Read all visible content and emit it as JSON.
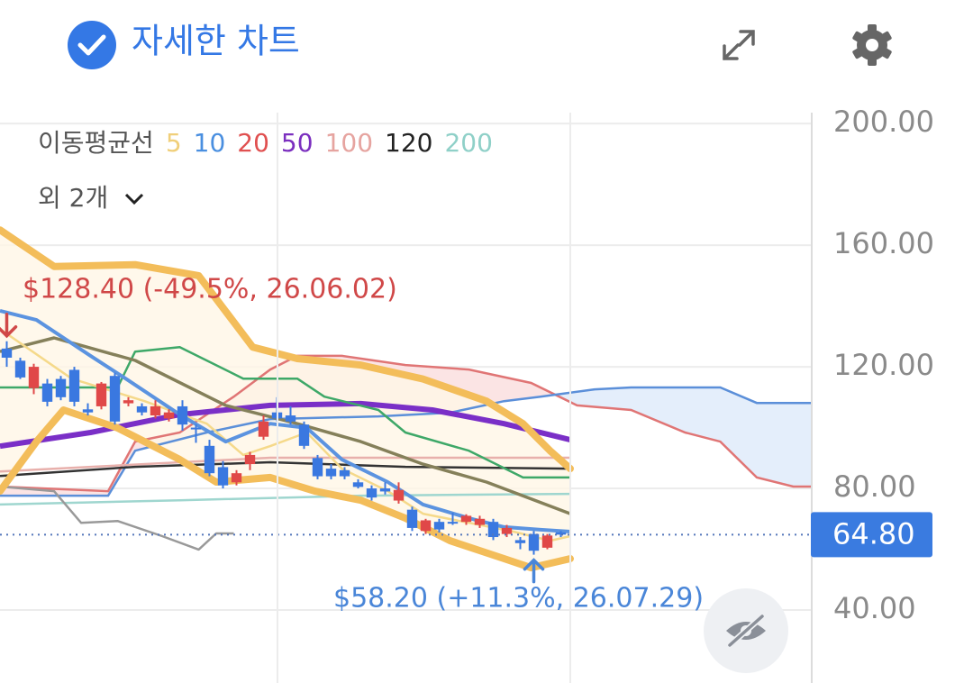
{
  "chart_data": {
    "type": "candlestick",
    "title": "자세한 차트",
    "legend": {
      "title": "이동평균선",
      "more": "외 2개",
      "items": [
        {
          "label": "5",
          "color": "#f0cf7a"
        },
        {
          "label": "10",
          "color": "#4a8fe0"
        },
        {
          "label": "20",
          "color": "#e05050"
        },
        {
          "label": "50",
          "color": "#7b2fbf"
        },
        {
          "label": "100",
          "color": "#e6a4a0"
        },
        {
          "label": "120",
          "color": "#222222"
        },
        {
          "label": "200",
          "color": "#8fd0c8"
        }
      ]
    },
    "ylim": [
      16,
      203.6
    ],
    "xlim": [
      -0.5,
      59.5
    ],
    "yticks": [
      {
        "value": 40,
        "label": "40.00"
      },
      {
        "value": 80,
        "label": "80.00"
      },
      {
        "value": 120,
        "label": "120.00"
      },
      {
        "value": 160,
        "label": "160.00"
      },
      {
        "value": 200,
        "label": "200.00"
      }
    ],
    "grid": true,
    "up_color": "#e04848",
    "down_color": "#3a78e0",
    "ohlc": [
      [
        126,
        128.4,
        120,
        123
      ],
      [
        122,
        123,
        116,
        116.5
      ],
      [
        113,
        121,
        111,
        120
      ],
      [
        114.5,
        116,
        107,
        108.5
      ],
      [
        116,
        117,
        109,
        110
      ],
      [
        119,
        120,
        107,
        108.5
      ],
      [
        106,
        108,
        104,
        105
      ],
      [
        107,
        115,
        106,
        114.5
      ],
      [
        117,
        118,
        101,
        102
      ],
      [
        108,
        110,
        107,
        109
      ],
      [
        107,
        108,
        104,
        105
      ],
      [
        104,
        109,
        103,
        107
      ],
      [
        103,
        106,
        102,
        105
      ],
      [
        107,
        109,
        99,
        101
      ],
      [
        100,
        101,
        95,
        99.5
      ],
      [
        94,
        96,
        84,
        85
      ],
      [
        87,
        89,
        80,
        81
      ],
      [
        82,
        86,
        81,
        85
      ],
      [
        88,
        92,
        86,
        91
      ],
      [
        97,
        104,
        96,
        102
      ],
      [
        105,
        110,
        102,
        103
      ],
      [
        104,
        107,
        101,
        102
      ],
      [
        101,
        102,
        93,
        94
      ],
      [
        90,
        91,
        83,
        84
      ],
      [
        86.5,
        88,
        83,
        84
      ],
      [
        86,
        87,
        83,
        84
      ],
      [
        82,
        83,
        80,
        80.5
      ],
      [
        80,
        81,
        76,
        77
      ],
      [
        80,
        82,
        78,
        79
      ],
      [
        76,
        82,
        75,
        79.5
      ],
      [
        73,
        74,
        66,
        67
      ],
      [
        66,
        70,
        65,
        69.5
      ],
      [
        69,
        70,
        65.5,
        66.5
      ],
      [
        69,
        72,
        68,
        68.5
      ],
      [
        69,
        71.5,
        68,
        71
      ],
      [
        68,
        71,
        67,
        70
      ],
      [
        69,
        70,
        63,
        64
      ],
      [
        65,
        68,
        64,
        67
      ],
      [
        63,
        64,
        60,
        62
      ],
      [
        65,
        66,
        58.2,
        59.5
      ],
      [
        60.5,
        65,
        60,
        64.5
      ],
      [
        65.5,
        66,
        64,
        64.8
      ]
    ],
    "cloud": {
      "fill_up": "#fbe4e4",
      "fill_down": "#e4eefb",
      "span_a": {
        "color": "#e07575",
        "x": [
          -0.5,
          7.5,
          9.5,
          12.8,
          16.8,
          19.5,
          21.5,
          24.8,
          29.5,
          34.2,
          38.8,
          42.2,
          46.2,
          50.2,
          52.8,
          55.5,
          58.2,
          59.5
        ],
        "values": [
          80.6,
          79.1,
          95.4,
          98.4,
          110.2,
          119.1,
          123.6,
          123.6,
          120.6,
          119.1,
          114.7,
          107.3,
          105.8,
          98.4,
          95.4,
          83.6,
          80.6,
          80.6
        ]
      },
      "span_b": {
        "color": "#5b8fd9",
        "x": [
          -0.5,
          7.5,
          9.5,
          14.8,
          19.5,
          27.5,
          32.8,
          36.8,
          39.5,
          43.5,
          46.2,
          52.8,
          55.5,
          59.5
        ],
        "values": [
          77.6,
          77.6,
          92.4,
          98.4,
          102.8,
          103.7,
          104.9,
          108.7,
          110.2,
          112.6,
          113.2,
          113.2,
          108.1,
          108.1
        ]
      }
    },
    "bands": {
      "fill": "#fff6e6",
      "upper": {
        "color": "#f3bd5a",
        "x": [
          -0.5,
          3.5,
          9.5,
          14.2,
          18.2,
          21.5,
          26.2,
          30.8,
          35.5,
          38.2,
          40.2,
          41.7
        ],
        "values": [
          165,
          153,
          153.6,
          150,
          126.5,
          122.7,
          120.6,
          116,
          108.7,
          101.3,
          92.4,
          86.5
        ]
      },
      "lower": {
        "color": "#f3bd5a",
        "x": [
          -0.5,
          2.2,
          4.2,
          8.2,
          12.8,
          15.5,
          19.5,
          22.8,
          26.2,
          29.5,
          32.8,
          36.8,
          38.8,
          41.7
        ],
        "values": [
          79.1,
          95.4,
          105.8,
          99.9,
          89.5,
          82.1,
          83.6,
          79.1,
          76.1,
          70.2,
          62.8,
          56.9,
          53.9,
          56.9
        ]
      }
    },
    "overlays": [
      {
        "color": "#9fd6cf",
        "x": [
          -0.5,
          12.8,
          26.2,
          41.7
        ],
        "values": [
          74.7,
          76.1,
          77.6,
          78.2
        ]
      },
      {
        "color": "#e8b0ac",
        "x": [
          -0.5,
          19.5,
          41.7
        ],
        "values": [
          85.6,
          90.1,
          90.1
        ]
      },
      {
        "color": "#333333",
        "x": [
          -0.5,
          9.5,
          19.5,
          29.5,
          41.7
        ],
        "values": [
          84.1,
          87.1,
          88.6,
          87.1,
          86.5
        ]
      },
      {
        "color": "#7a2fc7",
        "x": [
          -0.5,
          6.2,
          12.8,
          19.5,
          26.2,
          31.5,
          36.8,
          41.7
        ],
        "values": [
          93.9,
          98.4,
          104.3,
          107.3,
          107.9,
          105.8,
          101.3,
          96
        ]
      },
      {
        "color": "#3ea868",
        "x": [
          -0.5,
          8.2,
          9.5,
          12.8,
          17.5,
          21.5,
          23.5,
          27.5,
          29.5,
          34.2,
          38.2,
          41.7
        ],
        "values": [
          113.2,
          113.2,
          125,
          126.5,
          116.1,
          116.1,
          110.2,
          105.8,
          98.4,
          92.4,
          83.6,
          83.6
        ]
      },
      {
        "color": "#999999",
        "x": [
          -0.5,
          3.5,
          5.5,
          8.2,
          11.5,
          14.2,
          15.5,
          16.8
        ],
        "values": [
          80.6,
          79.1,
          68.7,
          69.3,
          64.3,
          59.9,
          65.2,
          65.2
        ]
      },
      {
        "color": "#85805a",
        "x": [
          -0.5,
          3.5,
          9.5,
          16.2,
          21.5,
          26.2,
          30.8,
          35.5,
          41.7
        ],
        "values": [
          125,
          129.5,
          122.1,
          107.3,
          101.3,
          95.4,
          88,
          82.1,
          71.7
        ]
      },
      {
        "color": "#f5d98a",
        "x": [
          -0.5,
          4.8,
          10.2,
          14.8,
          17.5,
          19.5,
          22.2,
          24.8,
          28.2,
          30.8,
          34.2,
          37.5,
          40.2,
          41.7
        ],
        "values": [
          132.4,
          116.1,
          108.7,
          101.3,
          91,
          93.9,
          98.4,
          86.5,
          79.1,
          71.7,
          68.7,
          65.8,
          62.8,
          64.3
        ]
      },
      {
        "color": "#5b93e0",
        "x": [
          -0.5,
          2.2,
          6.2,
          8.8,
          12.8,
          16.2,
          19.5,
          22.2,
          24.8,
          28.2,
          30.8,
          34.2,
          36.8,
          39.5,
          41.7
        ],
        "values": [
          138.4,
          135.4,
          123.6,
          116.1,
          104.3,
          95.4,
          101.3,
          99.9,
          89.5,
          82.1,
          74.7,
          70.2,
          67.3,
          66.4,
          65.8
        ]
      }
    ],
    "current_price": {
      "value": 64.8,
      "label": "64.80",
      "color": "#3a7be0"
    },
    "annotations": [
      {
        "text": "$128.40 (-49.5%, 26.06.02)",
        "value": 128.4,
        "x": 0,
        "color": "#d04848"
      },
      {
        "text": "$58.20 (+11.3%, 26.07.29)",
        "value": 58.2,
        "x": 39,
        "color": "#4a86d8"
      }
    ]
  }
}
